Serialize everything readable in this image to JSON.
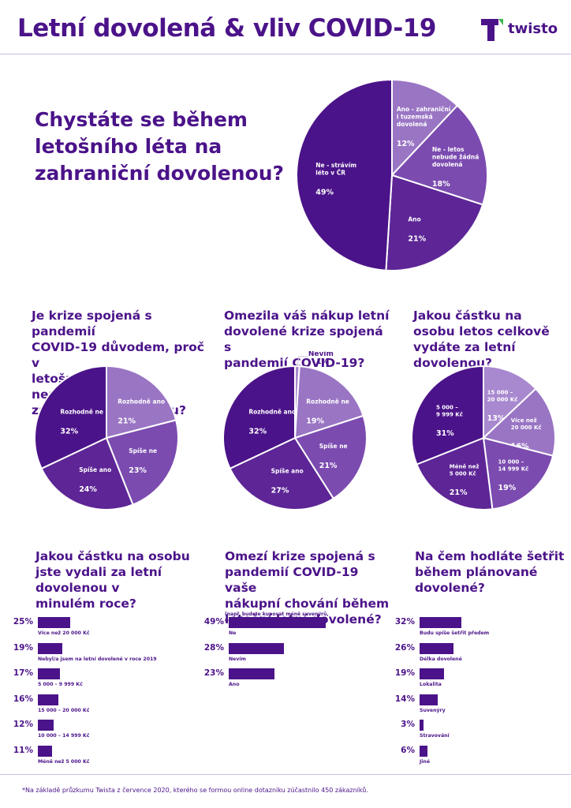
{
  "header": {
    "title": "Letní dovolená & vliv COVID-19",
    "logo_text": "twisto",
    "logo_icon": "twisto-t-logo-icon"
  },
  "colors": {
    "primary": "#4b1389",
    "slice_1": "#4b1389",
    "slice_2": "#5d2596",
    "slice_3": "#7b4bb0",
    "slice_4": "#9a75c4",
    "slice_5": "#a888cf",
    "logo_leaf": "#3bb54a",
    "rule": "#c9bee0"
  },
  "footnote": "*Na základě průzkumu Twista z července 2020, kterého se formou online dotazníku zúčastnilo 450 zákazníků.",
  "chart_data": [
    {
      "type": "pie",
      "title": "Chystáte se během letošního léta na zahraniční dovolenou?",
      "title_lines": [
        "Chystáte se během",
        "letošního léta na",
        "zahraniční dovolenou?"
      ],
      "slices": [
        {
          "label_lines": [
            "Ano - zahraniční",
            "i tuzemská",
            "dovolená"
          ],
          "value": 12,
          "value_label": "12%"
        },
        {
          "label_lines": [
            "Ne - letos",
            "nebude žádná",
            "dovolená"
          ],
          "value": 18,
          "value_label": "18%"
        },
        {
          "label_lines": [
            "Ano"
          ],
          "value": 21,
          "value_label": "21%"
        },
        {
          "label_lines": [
            "Ne - strávím",
            "léto v ČR"
          ],
          "value": 49,
          "value_label": "49%"
        }
      ]
    },
    {
      "type": "pie",
      "title": "Je krize spojená s pandemií COVID-19 důvodem, proč v letošním roce neplánujete zahraniční dovolenou?",
      "title_lines": [
        "Je krize spojená s pandemií",
        "COVID-19 důvodem, proč v",
        "letošním roce neplánujete",
        "zahraniční dovolenou?"
      ],
      "slices": [
        {
          "label_lines": [
            "Rozhodně ano"
          ],
          "value": 21,
          "value_label": "21%"
        },
        {
          "label_lines": [
            "Spíše ne"
          ],
          "value": 23,
          "value_label": "23%"
        },
        {
          "label_lines": [
            "Spíše ano"
          ],
          "value": 24,
          "value_label": "24%"
        },
        {
          "label_lines": [
            "Rozhodně ne"
          ],
          "value": 32,
          "value_label": "32%"
        }
      ]
    },
    {
      "type": "pie",
      "title": "Omezila váš nákup letní dovolené krize spojená s pandemií COVID-19?",
      "title_lines": [
        "Omezila váš nákup letní",
        "dovolené krize spojená s",
        "pandemií COVID-19?"
      ],
      "slices": [
        {
          "label_lines": [
            "Nevím"
          ],
          "value": 1,
          "value_label": "1%",
          "external": true
        },
        {
          "label_lines": [
            "Rozhodně ne"
          ],
          "value": 19,
          "value_label": "19%"
        },
        {
          "label_lines": [
            "Spíše ne"
          ],
          "value": 21,
          "value_label": "21%"
        },
        {
          "label_lines": [
            "Spíše ano"
          ],
          "value": 27,
          "value_label": "27%"
        },
        {
          "label_lines": [
            "Rozhodně ano"
          ],
          "value": 32,
          "value_label": "32%"
        }
      ]
    },
    {
      "type": "pie",
      "title": "Jakou částku na osobu letos celkově vydáte za letní dovolenou?",
      "title_lines": [
        "Jakou částku na",
        "osobu letos celkově",
        "vydáte za letní",
        "dovolenou?"
      ],
      "slices": [
        {
          "label_lines": [
            "15 000 –",
            "20 000 Kč"
          ],
          "value": 13,
          "value_label": "13%"
        },
        {
          "label_lines": [
            "Více než",
            "20 000 Kč"
          ],
          "value": 16,
          "value_label": "16%"
        },
        {
          "label_lines": [
            "10 000 –",
            "14 999 Kč"
          ],
          "value": 19,
          "value_label": "19%"
        },
        {
          "label_lines": [
            "Méně než",
            "5 000 Kč"
          ],
          "value": 21,
          "value_label": "21%"
        },
        {
          "label_lines": [
            "5 000 –",
            "9 999 Kč"
          ],
          "value": 31,
          "value_label": "31%"
        }
      ]
    },
    {
      "type": "bar",
      "orientation": "horizontal",
      "title": "Jakou částku na osobu jste vydali za letní dovolenou v minulém roce?",
      "title_lines": [
        "Jakou částku na osobu",
        "jste vydali za letní",
        "dovolenou v",
        "minulém roce?"
      ],
      "bars": [
        {
          "label": "Více než 20 000 Kč",
          "value": 25,
          "value_label": "25%"
        },
        {
          "label": "Nebyl/a jsem na letní dovolené v roce 2019",
          "value": 19,
          "value_label": "19%"
        },
        {
          "label": "5 000 – 9 999 Kč",
          "value": 17,
          "value_label": "17%"
        },
        {
          "label": "15 000 – 20 000 Kč",
          "value": 16,
          "value_label": "16%"
        },
        {
          "label": "10 000 – 14 999 Kč",
          "value": 12,
          "value_label": "12%"
        },
        {
          "label": "Méně než 5 000 Kč",
          "value": 11,
          "value_label": "11%"
        }
      ]
    },
    {
      "type": "bar",
      "orientation": "horizontal",
      "title": "Omezí krize spojená s pandemií COVID-19 vaše nákupní chování během letošní letní dovolené?",
      "title_lines": [
        "Omezí krize spojená s",
        "pandemií COVID-19 vaše",
        "nákupní chování během",
        "letošní letní dovolené?"
      ],
      "subtitle_lines": [
        "(např. budete kupovat méně suvenýrů,",
        "účastnit se méně výletů atd.)"
      ],
      "bars": [
        {
          "label": "Ne",
          "value": 49,
          "value_label": "49%"
        },
        {
          "label": "Nevím",
          "value": 28,
          "value_label": "28%"
        },
        {
          "label": "Ano",
          "value": 23,
          "value_label": "23%"
        }
      ]
    },
    {
      "type": "bar",
      "orientation": "horizontal",
      "title": "Na čem hodláte šetřit během plánované dovolené?",
      "title_lines": [
        "Na čem hodláte šetřit",
        "během plánované",
        "dovolené?"
      ],
      "bars": [
        {
          "label": "Budu spíše šetřit předem",
          "value": 32,
          "value_label": "32%"
        },
        {
          "label": "Délka dovolené",
          "value": 26,
          "value_label": "26%"
        },
        {
          "label": "Lokalita",
          "value": 19,
          "value_label": "19%"
        },
        {
          "label": "Suvenýry",
          "value": 14,
          "value_label": "14%"
        },
        {
          "label": "Stravování",
          "value": 3,
          "value_label": "3%"
        },
        {
          "label": "Jiné",
          "value": 6,
          "value_label": "6%"
        }
      ]
    }
  ]
}
